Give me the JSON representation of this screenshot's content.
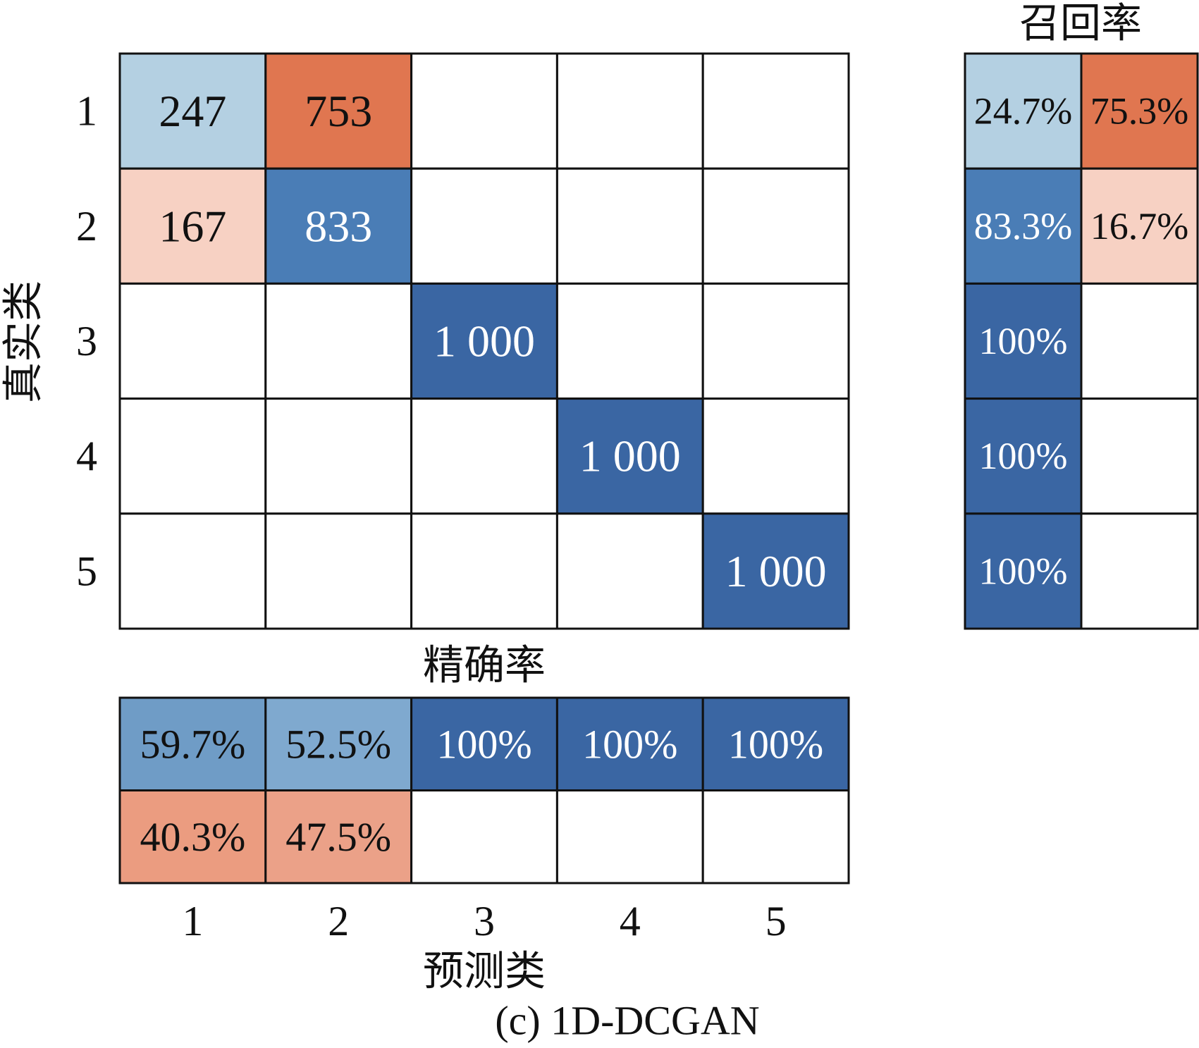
{
  "chart_data": {
    "type": "heatmap",
    "caption": "(c)  1D-DCGAN",
    "xlabel": "预测类",
    "ylabel": "真实类",
    "x_categories": [
      "1",
      "2",
      "3",
      "4",
      "5"
    ],
    "y_categories": [
      "1",
      "2",
      "3",
      "4",
      "5"
    ],
    "matrix": {
      "values": [
        [
          247,
          753,
          null,
          null,
          null
        ],
        [
          167,
          833,
          null,
          null,
          null
        ],
        [
          null,
          null,
          1000,
          null,
          null
        ],
        [
          null,
          null,
          null,
          1000,
          null
        ],
        [
          null,
          null,
          null,
          null,
          1000
        ]
      ],
      "value_labels": [
        [
          "247",
          "753",
          null,
          null,
          null
        ],
        [
          "167",
          "833",
          null,
          null,
          null
        ],
        [
          null,
          null,
          "1 000",
          null,
          null
        ],
        [
          null,
          null,
          null,
          "1 000",
          null
        ],
        [
          null,
          null,
          null,
          null,
          "1 000"
        ]
      ],
      "colors": [
        [
          "#b4d0e2",
          "#e07650",
          null,
          null,
          null
        ],
        [
          "#f7d1c3",
          "#4a7db6",
          null,
          null,
          null
        ],
        [
          null,
          null,
          "#3a66a3",
          null,
          null
        ],
        [
          null,
          null,
          null,
          "#3a66a3",
          null
        ],
        [
          null,
          null,
          null,
          null,
          "#3a66a3"
        ]
      ]
    },
    "recall": {
      "title": "召回率",
      "values": [
        [
          24.7,
          75.3
        ],
        [
          83.3,
          16.7
        ],
        [
          100,
          null
        ],
        [
          100,
          null
        ],
        [
          100,
          null
        ]
      ],
      "value_labels": [
        [
          "24.7%",
          "75.3%"
        ],
        [
          "83.3%",
          "16.7%"
        ],
        [
          "100%",
          null
        ],
        [
          "100%",
          null
        ],
        [
          "100%",
          null
        ]
      ],
      "colors": [
        [
          "#b4d0e2",
          "#e07650"
        ],
        [
          "#4a7db6",
          "#f7d1c3"
        ],
        [
          "#3a66a3",
          null
        ],
        [
          "#3a66a3",
          null
        ],
        [
          "#3a66a3",
          null
        ]
      ]
    },
    "precision": {
      "title": "精确率",
      "values": [
        [
          59.7,
          52.5,
          100,
          100,
          100
        ],
        [
          40.3,
          47.5,
          null,
          null,
          null
        ]
      ],
      "value_labels": [
        [
          "59.7%",
          "52.5%",
          "100%",
          "100%",
          "100%"
        ],
        [
          "40.3%",
          "47.5%",
          null,
          null,
          null
        ]
      ],
      "colors": [
        [
          "#6f9cc6",
          "#7fa9cf",
          "#3a66a3",
          "#3a66a3",
          "#3a66a3"
        ],
        [
          "#eb9c80",
          "#eba188",
          null,
          null,
          null
        ]
      ]
    }
  }
}
